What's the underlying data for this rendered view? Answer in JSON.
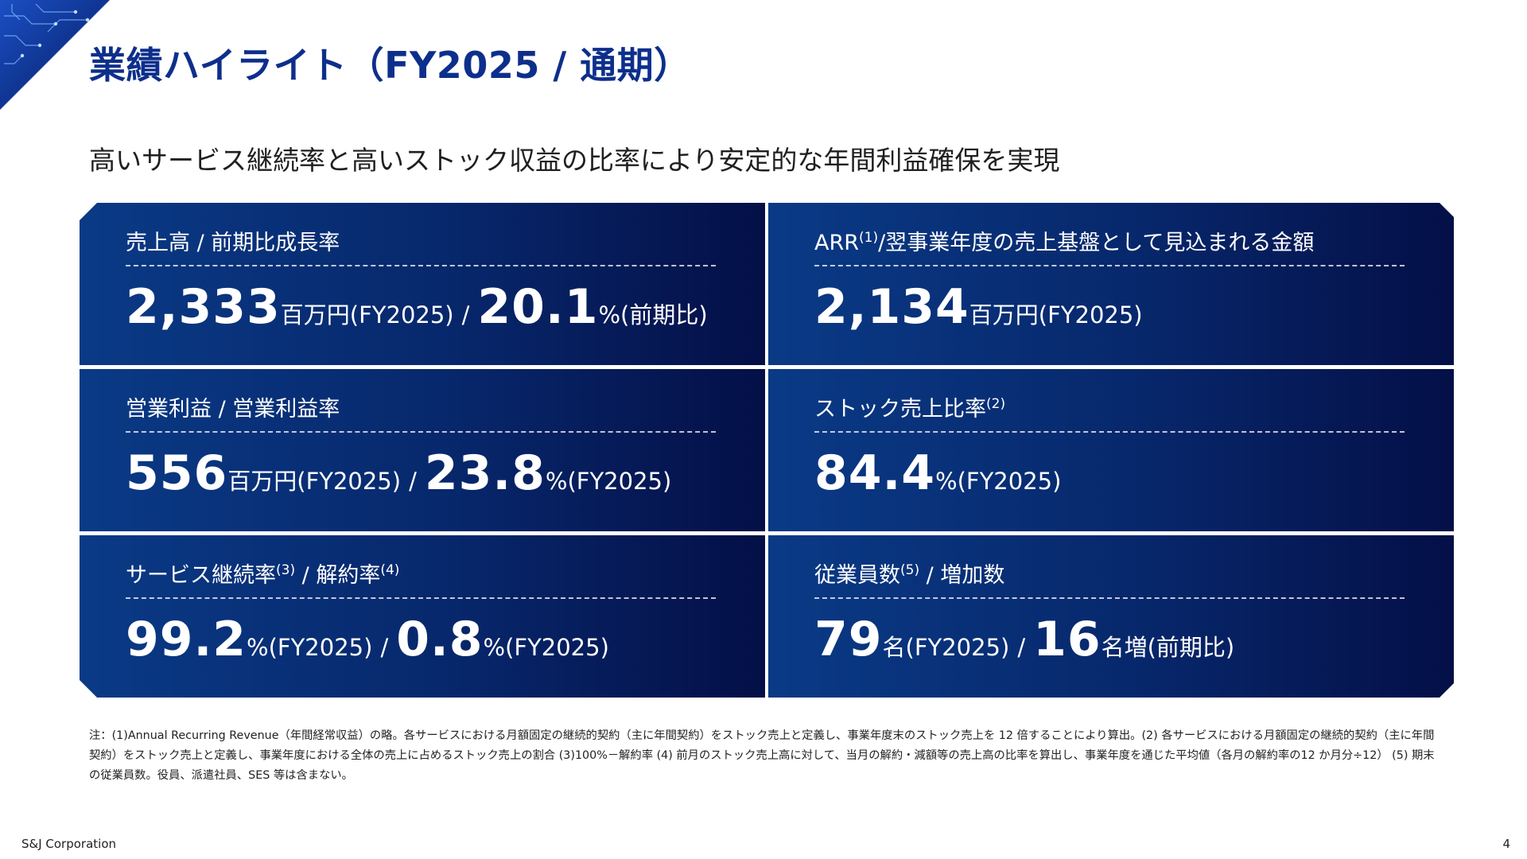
{
  "title": "業績ハイライト（FY2025 / 通期）",
  "subtitle": "高いサービス継続率と高いストック収益の比率により安定的な年間利益確保を実現",
  "cards": [
    {
      "label": "売上高 / 前期比成長率",
      "v1": "2,333",
      "u1": "百万円(FY2025)",
      "sep": "/",
      "v2": "20.1",
      "u2": "%(前期比)"
    },
    {
      "label": "/翌事業年度の売上基盤として見込まれる金額",
      "label_pre": "ARR",
      "label_sup": "(1)",
      "v1": "2,134",
      "u1": "百万円(FY2025)"
    },
    {
      "label": "営業利益 / 営業利益率",
      "v1": "556",
      "u1": "百万円(FY2025)",
      "sep": "/",
      "v2": "23.8",
      "u2": "%(FY2025)"
    },
    {
      "label_pre": "ストック売上比率",
      "label_sup": "(2)",
      "v1": "84.4",
      "u1": "%(FY2025)"
    },
    {
      "label_pre": "サービス継続率",
      "label_sup": "(3)",
      "label_mid": " / 解約率",
      "label_sup2": "(4)",
      "v1": "99.2",
      "u1": "%(FY2025)",
      "sep": "/",
      "v2": "0.8",
      "u2": "%(FY2025)"
    },
    {
      "label_pre": "従業員数",
      "label_sup": "(5)",
      "label_mid": " / 増加数",
      "v1": "79",
      "u1": "名(FY2025)",
      "sep": "/",
      "v2": "16",
      "u2": "名増(前期比)"
    }
  ],
  "notes": "注：(1)Annual Recurring Revenue（年間経常収益）の略。各サービスにおける月額固定の継続的契約（主に年間契約）をストック売上と定義し、事業年度末のストック売上を 12 倍することにより算出。(2) 各サービスにおける月額固定の継続的契約（主に年間契約）をストック売上と定義し、事業年度における全体の売上に占めるストック売上の割合 (3)100%－解約率 (4) 前月のストック売上高に対して、当月の解約・減額等の売上高の比率を算出し、事業年度を通じた平均値（各月の解約率の12 か月分÷12） (5) 期末の従業員数。役員、派遣社員、SES 等は含まない。",
  "footer": {
    "company": "S&J Corporation",
    "page": "4"
  },
  "colors": {
    "title": "#0d2f8c",
    "card_left": "#0a3a86",
    "card_right": "#040f47"
  }
}
